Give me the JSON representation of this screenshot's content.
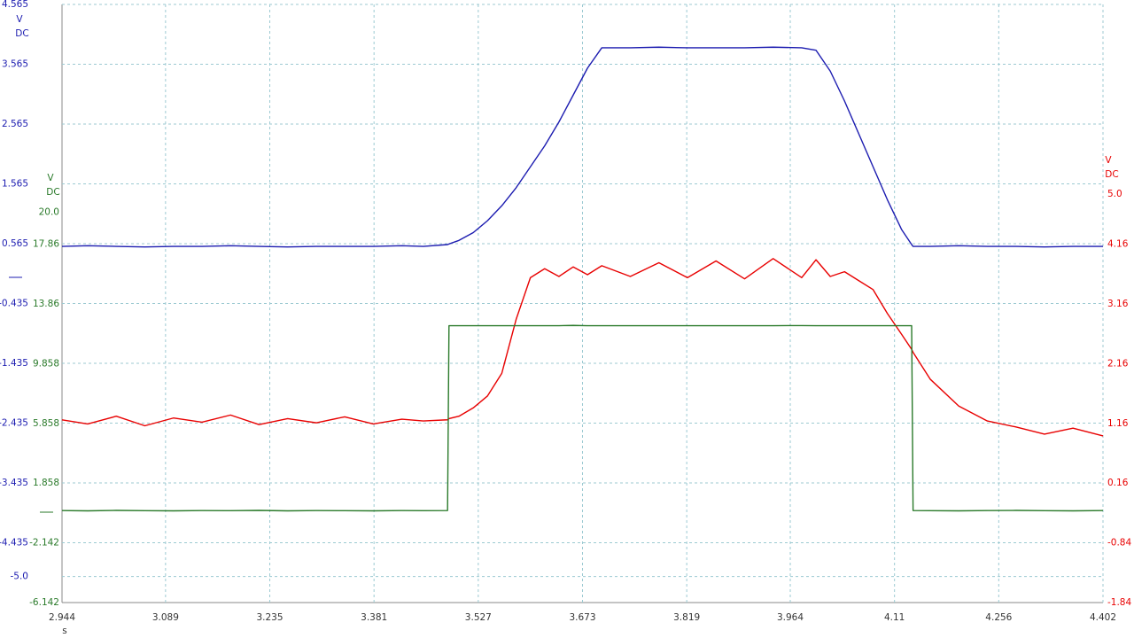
{
  "chart_data": {
    "type": "line",
    "xlabel": "s",
    "y_units": [
      "V",
      "DC"
    ],
    "y2_units": [
      "V",
      "DC"
    ],
    "y3_units": [
      "V",
      "DC"
    ],
    "x": [
      2.944,
      2.98,
      3.02,
      3.06,
      3.1,
      3.14,
      3.18,
      3.22,
      3.26,
      3.3,
      3.34,
      3.38,
      3.42,
      3.45,
      3.484,
      3.486,
      3.5,
      3.52,
      3.54,
      3.56,
      3.58,
      3.6,
      3.62,
      3.64,
      3.66,
      3.68,
      3.7,
      3.74,
      3.78,
      3.82,
      3.86,
      3.9,
      3.94,
      3.98,
      4.0,
      4.02,
      4.04,
      4.06,
      4.08,
      4.1,
      4.12,
      4.134,
      4.136,
      4.16,
      4.2,
      4.24,
      4.28,
      4.32,
      4.36,
      4.402
    ],
    "xlim": [
      2.944,
      4.402
    ],
    "xticks": [
      2.944,
      3.089,
      3.235,
      3.381,
      3.527,
      3.673,
      3.819,
      3.964,
      4.11,
      4.256,
      4.402
    ],
    "ylim": [
      -5.435,
      4.565
    ],
    "yticks": [
      4.565,
      3.565,
      2.565,
      1.565,
      0.565,
      -0.435,
      -1.435,
      -2.435,
      -3.435,
      -4.435,
      {
        "value": -5,
        "label": "-5.0"
      }
    ],
    "y2lim": [
      -1.84,
      8.175
    ],
    "y2ticks": [
      {
        "value": 5,
        "label": "5.0"
      },
      4.16,
      3.16,
      2.16,
      1.16,
      0.16,
      -0.84,
      -1.84
    ],
    "y3lim": [
      -6.142,
      33.918
    ],
    "y3ticks": [
      {
        "value": 20,
        "label": "20.0"
      },
      17.86,
      13.86,
      9.858,
      5.858,
      1.858,
      -2.142,
      -6.142
    ],
    "grid": true,
    "series": [
      {
        "name": "blue",
        "color": "#1c1cb0",
        "axis": "y",
        "values": [
          0.52,
          0.53,
          0.52,
          0.51,
          0.52,
          0.52,
          0.53,
          0.52,
          0.51,
          0.52,
          0.52,
          0.52,
          0.53,
          0.52,
          0.55,
          0.56,
          0.62,
          0.75,
          0.95,
          1.2,
          1.5,
          1.85,
          2.2,
          2.6,
          3.05,
          3.5,
          3.84,
          3.84,
          3.85,
          3.84,
          3.84,
          3.84,
          3.85,
          3.84,
          3.8,
          3.45,
          2.95,
          2.4,
          1.85,
          1.3,
          0.8,
          0.55,
          0.52,
          0.52,
          0.53,
          0.52,
          0.52,
          0.51,
          0.52,
          0.52
        ]
      },
      {
        "name": "red",
        "color": "#e80000",
        "axis": "y2",
        "values": [
          1.22,
          1.15,
          1.28,
          1.12,
          1.25,
          1.18,
          1.3,
          1.14,
          1.24,
          1.17,
          1.27,
          1.15,
          1.23,
          1.2,
          1.22,
          1.24,
          1.28,
          1.42,
          1.62,
          2.0,
          2.9,
          3.6,
          3.75,
          3.62,
          3.78,
          3.65,
          3.8,
          3.62,
          3.85,
          3.6,
          3.88,
          3.58,
          3.92,
          3.6,
          3.9,
          3.62,
          3.7,
          3.55,
          3.4,
          3.0,
          2.65,
          2.4,
          2.35,
          1.9,
          1.45,
          1.2,
          1.1,
          0.98,
          1.08,
          0.95
        ]
      },
      {
        "name": "green",
        "color": "#2a7a2a",
        "axis": "y3",
        "values": [
          0.02,
          0.0,
          0.03,
          0.01,
          0.0,
          0.02,
          0.01,
          0.03,
          0.0,
          0.02,
          0.01,
          0.0,
          0.02,
          0.01,
          0.02,
          12.4,
          12.4,
          12.4,
          12.4,
          12.4,
          12.4,
          12.4,
          12.4,
          12.4,
          12.42,
          12.4,
          12.4,
          12.4,
          12.4,
          12.4,
          12.4,
          12.4,
          12.4,
          12.41,
          12.4,
          12.4,
          12.4,
          12.4,
          12.4,
          12.4,
          12.4,
          12.4,
          0.02,
          0.01,
          0.0,
          0.02,
          0.03,
          0.01,
          0.0,
          0.02
        ]
      }
    ]
  }
}
